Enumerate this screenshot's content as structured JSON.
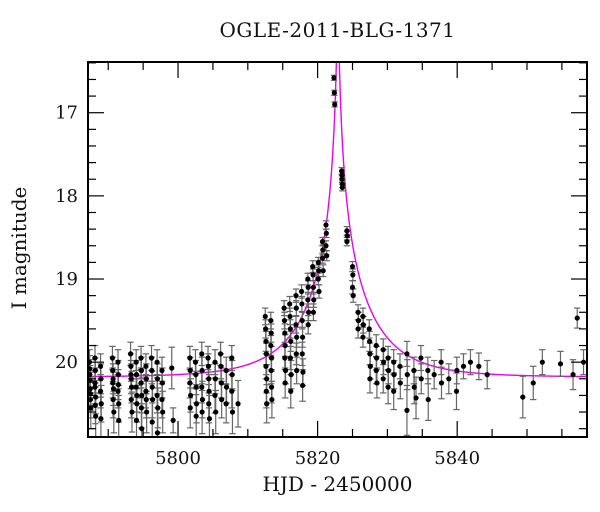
{
  "chart_data": {
    "type": "scatter",
    "title": "OGLE-2011-BLG-1371",
    "xlabel": "HJD - 2450000",
    "ylabel": "I magnitude",
    "x_range": [
      5787.1,
      5858.6
    ],
    "y_range_mag": [
      16.39,
      20.9
    ],
    "y_axis_inverted": true,
    "x_major_ticks": [
      5800,
      5820,
      5840
    ],
    "x_minor_tick_step": 5,
    "y_major_ticks": [
      17,
      18,
      19,
      20
    ],
    "y_minor_tick_step": 0.2,
    "grid": false,
    "legend": false,
    "colors": {
      "points": "#000000",
      "error_bars": "#666666",
      "model_curve": "#ee00ee",
      "axes": "#000000",
      "background": "#ffffff"
    },
    "model_curve": {
      "shape": "point-lens-microlensing",
      "t0": 5822.9,
      "tE_days": 9.0,
      "u0": 0.02,
      "baseline_mag": 20.18
    },
    "points_format": [
      "hjd_minus_2450000",
      "i_mag",
      "mag_error"
    ],
    "points": [
      [
        5787.3,
        20.0,
        0.15
      ],
      [
        5787.35,
        20.15,
        0.18
      ],
      [
        5787.4,
        20.32,
        0.2
      ],
      [
        5787.45,
        20.45,
        0.22
      ],
      [
        5787.4,
        20.22,
        0.18
      ],
      [
        5787.5,
        20.55,
        0.25
      ],
      [
        5787.35,
        20.08,
        0.16
      ],
      [
        5787.45,
        20.38,
        0.2
      ],
      [
        5788.1,
        19.95,
        0.15
      ],
      [
        5788.15,
        20.1,
        0.15
      ],
      [
        5788.1,
        20.25,
        0.18
      ],
      [
        5788.2,
        20.42,
        0.2
      ],
      [
        5788.15,
        20.52,
        0.22
      ],
      [
        5788.1,
        20.3,
        0.2
      ],
      [
        5788.2,
        20.65,
        0.28
      ],
      [
        5788.9,
        20.05,
        0.15
      ],
      [
        5788.95,
        20.2,
        0.18
      ],
      [
        5788.9,
        20.35,
        0.2
      ],
      [
        5789.0,
        20.5,
        0.22
      ],
      [
        5788.95,
        20.68,
        0.26
      ],
      [
        5790.6,
        19.95,
        0.14
      ],
      [
        5790.65,
        20.1,
        0.16
      ],
      [
        5790.7,
        20.2,
        0.18
      ],
      [
        5790.75,
        20.32,
        0.2
      ],
      [
        5790.7,
        20.45,
        0.22
      ],
      [
        5790.8,
        20.6,
        0.25
      ],
      [
        5790.65,
        20.25,
        0.18
      ],
      [
        5791.4,
        20.0,
        0.15
      ],
      [
        5791.45,
        20.15,
        0.17
      ],
      [
        5791.4,
        20.35,
        0.2
      ],
      [
        5791.5,
        20.5,
        0.22
      ],
      [
        5791.45,
        20.27,
        0.18
      ],
      [
        5791.5,
        20.7,
        0.3
      ],
      [
        5793.2,
        19.9,
        0.14
      ],
      [
        5793.25,
        20.05,
        0.15
      ],
      [
        5793.3,
        20.2,
        0.18
      ],
      [
        5793.35,
        20.3,
        0.19
      ],
      [
        5793.3,
        20.45,
        0.22
      ],
      [
        5793.4,
        20.6,
        0.24
      ],
      [
        5793.25,
        20.15,
        0.17
      ],
      [
        5794.0,
        20.0,
        0.15
      ],
      [
        5794.05,
        20.15,
        0.17
      ],
      [
        5794.0,
        20.3,
        0.2
      ],
      [
        5794.1,
        20.5,
        0.22
      ],
      [
        5794.05,
        20.7,
        0.28
      ],
      [
        5794.1,
        20.4,
        0.2
      ],
      [
        5794.7,
        19.95,
        0.14
      ],
      [
        5794.75,
        20.1,
        0.16
      ],
      [
        5794.7,
        20.25,
        0.18
      ],
      [
        5794.8,
        20.4,
        0.21
      ],
      [
        5794.75,
        20.55,
        0.24
      ],
      [
        5794.8,
        20.8,
        0.3
      ],
      [
        5795.4,
        20.05,
        0.15
      ],
      [
        5795.45,
        20.2,
        0.18
      ],
      [
        5795.4,
        20.35,
        0.2
      ],
      [
        5795.5,
        20.6,
        0.25
      ],
      [
        5795.45,
        20.45,
        0.22
      ],
      [
        5796.2,
        19.95,
        0.15
      ],
      [
        5796.25,
        20.1,
        0.16
      ],
      [
        5796.3,
        20.3,
        0.19
      ],
      [
        5796.35,
        20.45,
        0.22
      ],
      [
        5796.3,
        20.72,
        0.28
      ],
      [
        5797.0,
        20.0,
        0.15
      ],
      [
        5797.05,
        20.2,
        0.18
      ],
      [
        5797.0,
        20.4,
        0.21
      ],
      [
        5797.1,
        20.55,
        0.24
      ],
      [
        5797.05,
        20.85,
        0.3
      ],
      [
        5797.7,
        20.1,
        0.16
      ],
      [
        5797.75,
        20.25,
        0.18
      ],
      [
        5797.7,
        20.45,
        0.22
      ],
      [
        5797.8,
        20.6,
        0.25
      ],
      [
        5799.1,
        20.07,
        0.25
      ],
      [
        5799.3,
        20.7,
        0.15
      ],
      [
        5801.7,
        19.95,
        0.14
      ],
      [
        5801.75,
        20.1,
        0.16
      ],
      [
        5801.7,
        20.25,
        0.18
      ],
      [
        5801.8,
        20.4,
        0.2
      ],
      [
        5801.75,
        20.55,
        0.24
      ],
      [
        5802.5,
        20.0,
        0.15
      ],
      [
        5802.55,
        20.15,
        0.17
      ],
      [
        5802.6,
        20.3,
        0.19
      ],
      [
        5802.65,
        20.5,
        0.23
      ],
      [
        5802.6,
        20.65,
        0.26
      ],
      [
        5803.4,
        19.9,
        0.14
      ],
      [
        5803.45,
        20.1,
        0.16
      ],
      [
        5803.4,
        20.3,
        0.19
      ],
      [
        5803.5,
        20.45,
        0.22
      ],
      [
        5803.45,
        20.6,
        0.26
      ],
      [
        5804.3,
        19.95,
        0.14
      ],
      [
        5804.35,
        20.05,
        0.15
      ],
      [
        5804.4,
        20.2,
        0.17
      ],
      [
        5804.45,
        20.35,
        0.2
      ],
      [
        5804.4,
        20.5,
        0.23
      ],
      [
        5804.5,
        20.68,
        0.28
      ],
      [
        5805.3,
        20.0,
        0.15
      ],
      [
        5805.35,
        20.2,
        0.18
      ],
      [
        5805.3,
        20.4,
        0.21
      ],
      [
        5805.4,
        20.6,
        0.26
      ],
      [
        5806.1,
        19.9,
        0.14
      ],
      [
        5806.15,
        20.05,
        0.15
      ],
      [
        5806.2,
        20.25,
        0.18
      ],
      [
        5806.25,
        20.45,
        0.22
      ],
      [
        5806.9,
        20.1,
        0.16
      ],
      [
        5806.95,
        20.3,
        0.19
      ],
      [
        5806.9,
        20.5,
        0.23
      ],
      [
        5807.7,
        19.95,
        0.15
      ],
      [
        5807.75,
        20.15,
        0.17
      ],
      [
        5807.7,
        20.35,
        0.2
      ],
      [
        5807.8,
        20.6,
        0.26
      ],
      [
        5808.6,
        20.5,
        0.28
      ],
      [
        5812.5,
        19.45,
        0.1
      ],
      [
        5812.55,
        19.6,
        0.11
      ],
      [
        5812.6,
        19.75,
        0.12
      ],
      [
        5812.65,
        19.9,
        0.13
      ],
      [
        5812.6,
        20.05,
        0.15
      ],
      [
        5812.7,
        20.2,
        0.17
      ],
      [
        5812.65,
        20.35,
        0.2
      ],
      [
        5812.7,
        20.5,
        0.23
      ],
      [
        5813.3,
        19.5,
        0.1
      ],
      [
        5813.35,
        19.65,
        0.11
      ],
      [
        5813.3,
        19.8,
        0.12
      ],
      [
        5813.4,
        19.95,
        0.14
      ],
      [
        5813.35,
        20.1,
        0.16
      ],
      [
        5813.4,
        20.3,
        0.19
      ],
      [
        5813.45,
        20.45,
        0.22
      ],
      [
        5815.2,
        19.35,
        0.09
      ],
      [
        5815.25,
        19.5,
        0.1
      ],
      [
        5815.3,
        19.65,
        0.11
      ],
      [
        5815.35,
        19.8,
        0.13
      ],
      [
        5815.3,
        19.95,
        0.14
      ],
      [
        5815.4,
        20.1,
        0.16
      ],
      [
        5815.35,
        20.25,
        0.18
      ],
      [
        5816.0,
        19.3,
        0.09
      ],
      [
        5816.05,
        19.45,
        0.1
      ],
      [
        5816.1,
        19.6,
        0.11
      ],
      [
        5816.15,
        19.75,
        0.12
      ],
      [
        5816.1,
        19.95,
        0.14
      ],
      [
        5816.2,
        20.15,
        0.17
      ],
      [
        5816.15,
        20.35,
        0.2
      ],
      [
        5816.9,
        19.2,
        0.08
      ],
      [
        5816.95,
        19.35,
        0.09
      ],
      [
        5816.9,
        19.55,
        0.1
      ],
      [
        5817.0,
        19.7,
        0.12
      ],
      [
        5816.95,
        19.9,
        0.13
      ],
      [
        5817.0,
        20.1,
        0.16
      ],
      [
        5817.7,
        19.15,
        0.08
      ],
      [
        5817.75,
        19.3,
        0.09
      ],
      [
        5817.8,
        19.5,
        0.1
      ],
      [
        5817.85,
        19.7,
        0.12
      ],
      [
        5817.8,
        19.9,
        0.14
      ],
      [
        5817.9,
        20.12,
        0.16
      ],
      [
        5817.85,
        20.28,
        0.19
      ],
      [
        5818.6,
        19.0,
        0.07
      ],
      [
        5818.65,
        19.1,
        0.08
      ],
      [
        5818.6,
        19.25,
        0.09
      ],
      [
        5818.7,
        19.4,
        0.1
      ],
      [
        5818.65,
        19.55,
        0.11
      ],
      [
        5819.3,
        18.85,
        0.07
      ],
      [
        5819.35,
        18.95,
        0.07
      ],
      [
        5819.4,
        19.1,
        0.08
      ],
      [
        5819.45,
        19.25,
        0.09
      ],
      [
        5819.4,
        19.4,
        0.1
      ],
      [
        5820.1,
        18.8,
        0.06
      ],
      [
        5820.15,
        18.9,
        0.07
      ],
      [
        5820.1,
        19.0,
        0.07
      ],
      [
        5820.2,
        19.15,
        0.08
      ],
      [
        5820.7,
        18.55,
        0.05
      ],
      [
        5820.75,
        18.65,
        0.06
      ],
      [
        5820.7,
        18.75,
        0.06
      ],
      [
        5820.8,
        18.9,
        0.07
      ],
      [
        5821.2,
        18.35,
        0.05
      ],
      [
        5821.25,
        18.45,
        0.05
      ],
      [
        5821.2,
        18.6,
        0.06
      ],
      [
        5821.3,
        18.72,
        0.06
      ],
      [
        5822.35,
        16.58,
        0.03
      ],
      [
        5822.4,
        16.76,
        0.03
      ],
      [
        5822.45,
        16.9,
        0.03
      ],
      [
        5823.45,
        17.7,
        0.04
      ],
      [
        5823.5,
        17.75,
        0.04
      ],
      [
        5823.5,
        17.8,
        0.04
      ],
      [
        5823.55,
        17.86,
        0.04
      ],
      [
        5823.55,
        17.9,
        0.04
      ],
      [
        5824.2,
        18.42,
        0.05
      ],
      [
        5824.25,
        18.48,
        0.05
      ],
      [
        5824.2,
        18.55,
        0.05
      ],
      [
        5825.0,
        18.85,
        0.06
      ],
      [
        5825.05,
        18.95,
        0.07
      ],
      [
        5825.0,
        19.1,
        0.08
      ],
      [
        5825.1,
        19.2,
        0.08
      ],
      [
        5825.8,
        19.4,
        0.09
      ],
      [
        5825.85,
        19.5,
        0.1
      ],
      [
        5825.8,
        19.6,
        0.11
      ],
      [
        5826.5,
        19.45,
        0.1
      ],
      [
        5826.55,
        19.55,
        0.1
      ],
      [
        5826.5,
        19.7,
        0.12
      ],
      [
        5827.4,
        19.6,
        0.11
      ],
      [
        5827.45,
        19.75,
        0.12
      ],
      [
        5827.5,
        19.9,
        0.13
      ],
      [
        5827.55,
        20.05,
        0.15
      ],
      [
        5827.5,
        20.2,
        0.17
      ],
      [
        5828.4,
        19.8,
        0.13
      ],
      [
        5828.45,
        19.95,
        0.14
      ],
      [
        5828.4,
        20.1,
        0.16
      ],
      [
        5828.5,
        20.25,
        0.18
      ],
      [
        5829.4,
        19.85,
        0.13
      ],
      [
        5829.45,
        20.0,
        0.15
      ],
      [
        5829.4,
        20.2,
        0.17
      ],
      [
        5830.1,
        19.95,
        0.14
      ],
      [
        5830.15,
        20.1,
        0.16
      ],
      [
        5830.1,
        20.3,
        0.2
      ],
      [
        5830.9,
        20.0,
        0.15
      ],
      [
        5830.95,
        20.15,
        0.17
      ],
      [
        5830.9,
        20.35,
        0.22
      ],
      [
        5831.8,
        20.05,
        0.15
      ],
      [
        5831.85,
        20.25,
        0.19
      ],
      [
        5832.8,
        19.9,
        0.15
      ],
      [
        5832.85,
        20.15,
        0.18
      ],
      [
        5832.8,
        20.58,
        0.3
      ],
      [
        5833.8,
        20.1,
        0.16
      ],
      [
        5833.85,
        20.3,
        0.2
      ],
      [
        5834.1,
        20.43,
        0.25
      ],
      [
        5834.8,
        19.95,
        0.15
      ],
      [
        5834.85,
        20.2,
        0.18
      ],
      [
        5835.8,
        20.1,
        0.16
      ],
      [
        5835.85,
        20.45,
        0.25
      ],
      [
        5836.7,
        20.15,
        0.17
      ],
      [
        5837.7,
        20.0,
        0.15
      ],
      [
        5837.75,
        20.25,
        0.19
      ],
      [
        5838.8,
        20.2,
        0.18
      ],
      [
        5839.9,
        20.35,
        0.22
      ],
      [
        5839.95,
        20.1,
        0.16
      ],
      [
        5840.9,
        20.05,
        0.15
      ],
      [
        5841.9,
        20.0,
        0.15
      ],
      [
        5843.1,
        20.05,
        0.16
      ],
      [
        5844.3,
        20.15,
        0.17
      ],
      [
        5849.4,
        20.42,
        0.25
      ],
      [
        5850.9,
        20.25,
        0.2
      ],
      [
        5852.2,
        20.0,
        0.15
      ],
      [
        5854.8,
        20.02,
        0.15
      ],
      [
        5856.6,
        20.15,
        0.18
      ],
      [
        5857.2,
        19.47,
        0.12
      ],
      [
        5858.1,
        20.0,
        0.15
      ]
    ]
  }
}
